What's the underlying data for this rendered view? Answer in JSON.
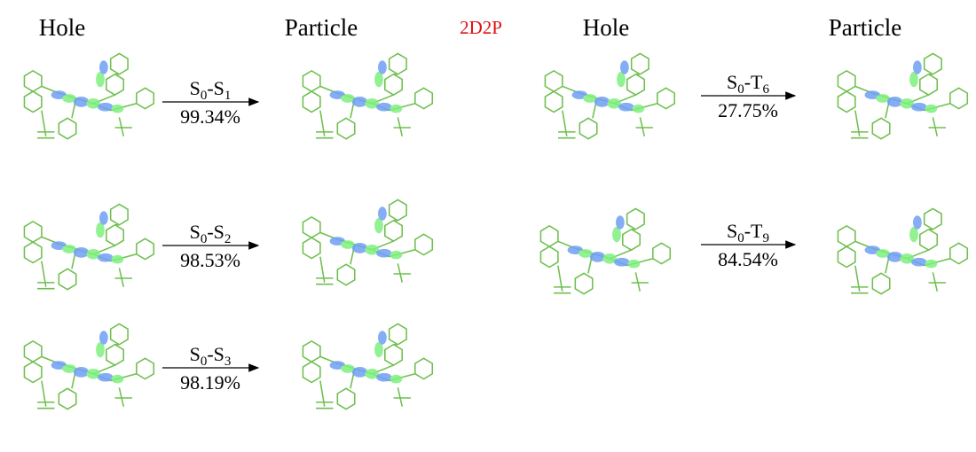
{
  "left": {
    "hole_label": "Hole",
    "particle_label": "Particle",
    "transitions": [
      {
        "parts": [
          "S",
          "0",
          "-S",
          "1"
        ],
        "percent": "99.34%"
      },
      {
        "parts": [
          "S",
          "0",
          "-S",
          "2"
        ],
        "percent": "98.53%"
      },
      {
        "parts": [
          "S",
          "0",
          "-S",
          "3"
        ],
        "percent": "98.19%"
      }
    ]
  },
  "center_label": "2D2P",
  "right": {
    "hole_label": "Hole",
    "particle_label": "Particle",
    "transitions": [
      {
        "parts": [
          "S",
          "0",
          "-T",
          "6"
        ],
        "percent": "27.75%"
      },
      {
        "parts": [
          "S",
          "0",
          "-T",
          "9"
        ],
        "percent": "84.54%"
      }
    ]
  }
}
